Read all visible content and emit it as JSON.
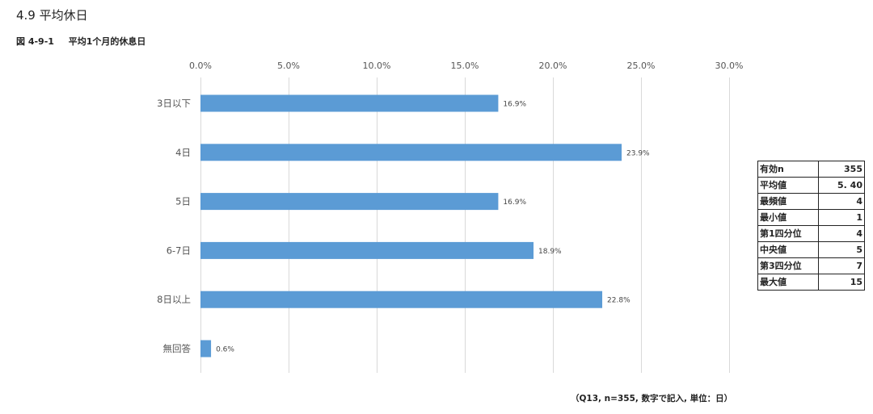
{
  "section_title": "4.9  平均休日",
  "figure_caption": {
    "number": "図 4-9-1",
    "title": "平均1个月的休息日"
  },
  "chart_data": {
    "type": "bar",
    "orientation": "horizontal",
    "categories": [
      "3日以下",
      "4日",
      "5日",
      "6-7日",
      "8日以上",
      "無回答"
    ],
    "values": [
      16.9,
      23.9,
      16.9,
      18.9,
      22.8,
      0.6
    ],
    "value_labels": [
      "16.9%",
      "23.9%",
      "16.9%",
      "18.9%",
      "22.8%",
      "0.6%"
    ],
    "x_ticks": [
      0,
      5,
      10,
      15,
      20,
      25,
      30
    ],
    "x_tick_labels": [
      "0.0%",
      "5.0%",
      "10.0%",
      "15.0%",
      "20.0%",
      "25.0%",
      "30.0%"
    ],
    "xlim": [
      0,
      30
    ],
    "x_axis_position": "top",
    "grid": true,
    "bar_color": "#5b9bd5"
  },
  "stats_table": [
    {
      "label": "有効n",
      "value": "355"
    },
    {
      "label": "平均値",
      "value": "5. 40"
    },
    {
      "label": "最頻値",
      "value": "4"
    },
    {
      "label": "最小値",
      "value": "1"
    },
    {
      "label": "第1四分位",
      "value": "4"
    },
    {
      "label": "中央値",
      "value": "5"
    },
    {
      "label": "第3四分位",
      "value": "7"
    },
    {
      "label": "最大値",
      "value": "15"
    }
  ],
  "note": "（Q13, n=355, 数字で記入, 単位：日）"
}
